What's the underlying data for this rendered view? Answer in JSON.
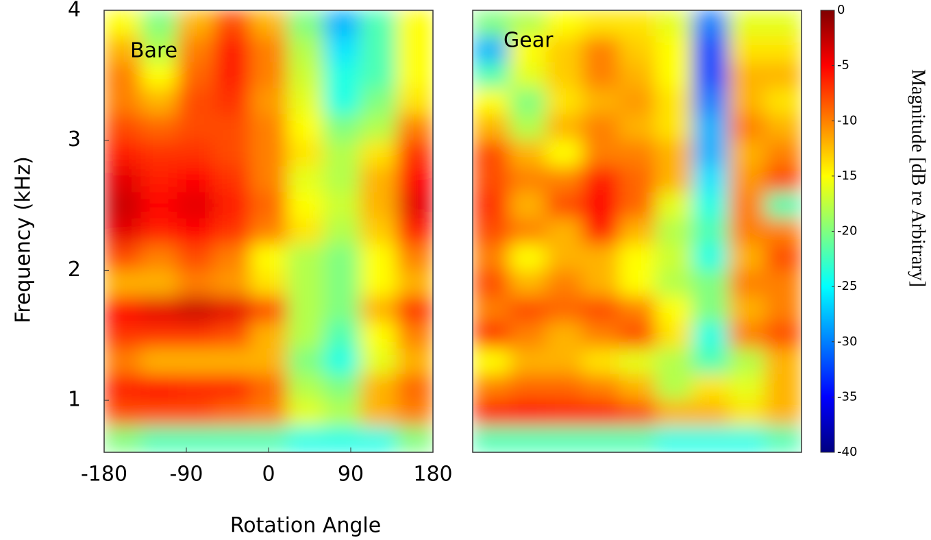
{
  "chart_data": [
    {
      "type": "heatmap",
      "annotation": "Bare",
      "xlabel": "Rotation Angle",
      "ylabel": "Frequency (kHz)",
      "xlim": [
        -180,
        180
      ],
      "xticks": [
        -180,
        -90,
        0,
        90,
        180
      ],
      "ylim": [
        0.6,
        4.0
      ],
      "yticks": [
        1,
        2,
        3,
        4
      ],
      "zlim": [
        -40,
        0
      ],
      "x": [
        -160,
        -120,
        -80,
        -40,
        0,
        40,
        80,
        120,
        160
      ],
      "y": [
        3.9,
        3.7,
        3.5,
        3.3,
        3.1,
        2.9,
        2.7,
        2.5,
        2.3,
        2.1,
        1.9,
        1.7,
        1.5,
        1.3,
        1.1,
        0.9,
        0.7
      ],
      "z": [
        [
          -15,
          -20,
          -12,
          -8,
          -12,
          -20,
          -28,
          -22,
          -15
        ],
        [
          -12,
          -18,
          -10,
          -6,
          -10,
          -18,
          -26,
          -22,
          -15
        ],
        [
          -10,
          -15,
          -9,
          -6,
          -10,
          -17,
          -24,
          -22,
          -15
        ],
        [
          -10,
          -12,
          -8,
          -7,
          -11,
          -16,
          -24,
          -20,
          -14
        ],
        [
          -8,
          -9,
          -8,
          -8,
          -10,
          -15,
          -20,
          -18,
          -10
        ],
        [
          -6,
          -7,
          -7,
          -8,
          -10,
          -14,
          -18,
          -14,
          -7
        ],
        [
          -4,
          -6,
          -5,
          -7,
          -10,
          -16,
          -18,
          -12,
          -5
        ],
        [
          -3,
          -5,
          -4,
          -6,
          -9,
          -15,
          -17,
          -12,
          -4
        ],
        [
          -4,
          -6,
          -5,
          -7,
          -10,
          -14,
          -18,
          -13,
          -6
        ],
        [
          -8,
          -10,
          -8,
          -10,
          -15,
          -18,
          -20,
          -15,
          -10
        ],
        [
          -12,
          -12,
          -10,
          -11,
          -14,
          -18,
          -20,
          -15,
          -12
        ],
        [
          -5,
          -4,
          -3,
          -4,
          -8,
          -18,
          -20,
          -12,
          -7
        ],
        [
          -7,
          -7,
          -7,
          -8,
          -12,
          -18,
          -22,
          -15,
          -10
        ],
        [
          -10,
          -12,
          -12,
          -12,
          -12,
          -20,
          -24,
          -16,
          -12
        ],
        [
          -6,
          -5,
          -6,
          -6,
          -9,
          -18,
          -20,
          -12,
          -9
        ],
        [
          -8,
          -8,
          -8,
          -9,
          -10,
          -16,
          -18,
          -12,
          -10
        ],
        [
          -20,
          -22,
          -22,
          -22,
          -22,
          -24,
          -24,
          -24,
          -20
        ]
      ]
    },
    {
      "type": "heatmap",
      "annotation": "Gear",
      "xlim": [
        -180,
        180
      ],
      "ylim": [
        0.6,
        4.0
      ],
      "zlim": [
        -40,
        0
      ],
      "zticks": [
        0,
        -5,
        -10,
        -15,
        -20,
        -25,
        -30,
        -35,
        -40
      ],
      "colorbar_label": "Magnitude [dB re Arbitrary]",
      "x": [
        -160,
        -120,
        -80,
        -40,
        0,
        40,
        80,
        120,
        160
      ],
      "y": [
        3.9,
        3.7,
        3.5,
        3.3,
        3.1,
        2.9,
        2.7,
        2.5,
        2.3,
        2.1,
        1.9,
        1.7,
        1.5,
        1.3,
        1.1,
        0.9,
        0.7
      ],
      "z": [
        [
          -20,
          -18,
          -15,
          -14,
          -14,
          -16,
          -30,
          -16,
          -16
        ],
        [
          -28,
          -15,
          -13,
          -10,
          -13,
          -15,
          -32,
          -14,
          -14
        ],
        [
          -22,
          -16,
          -13,
          -10,
          -12,
          -15,
          -32,
          -12,
          -12
        ],
        [
          -15,
          -20,
          -14,
          -12,
          -11,
          -14,
          -30,
          -12,
          -14
        ],
        [
          -12,
          -18,
          -12,
          -10,
          -12,
          -14,
          -28,
          -10,
          -12
        ],
        [
          -8,
          -12,
          -15,
          -10,
          -10,
          -12,
          -28,
          -12,
          -10
        ],
        [
          -8,
          -10,
          -10,
          -6,
          -9,
          -12,
          -26,
          -11,
          -8
        ],
        [
          -7,
          -12,
          -8,
          -5,
          -9,
          -16,
          -24,
          -10,
          -22
        ],
        [
          -8,
          -10,
          -12,
          -6,
          -12,
          -18,
          -22,
          -10,
          -10
        ],
        [
          -10,
          -15,
          -12,
          -12,
          -15,
          -17,
          -24,
          -12,
          -8
        ],
        [
          -8,
          -12,
          -10,
          -12,
          -15,
          -18,
          -20,
          -10,
          -10
        ],
        [
          -10,
          -8,
          -9,
          -8,
          -10,
          -15,
          -20,
          -12,
          -10
        ],
        [
          -7,
          -10,
          -12,
          -10,
          -8,
          -14,
          -24,
          -10,
          -8
        ],
        [
          -15,
          -12,
          -12,
          -14,
          -16,
          -18,
          -22,
          -18,
          -12
        ],
        [
          -10,
          -9,
          -9,
          -10,
          -12,
          -18,
          -14,
          -16,
          -12
        ],
        [
          -6,
          -5,
          -6,
          -6,
          -8,
          -12,
          -12,
          -14,
          -12
        ],
        [
          -22,
          -22,
          -22,
          -22,
          -22,
          -24,
          -24,
          -24,
          -22
        ]
      ]
    }
  ]
}
